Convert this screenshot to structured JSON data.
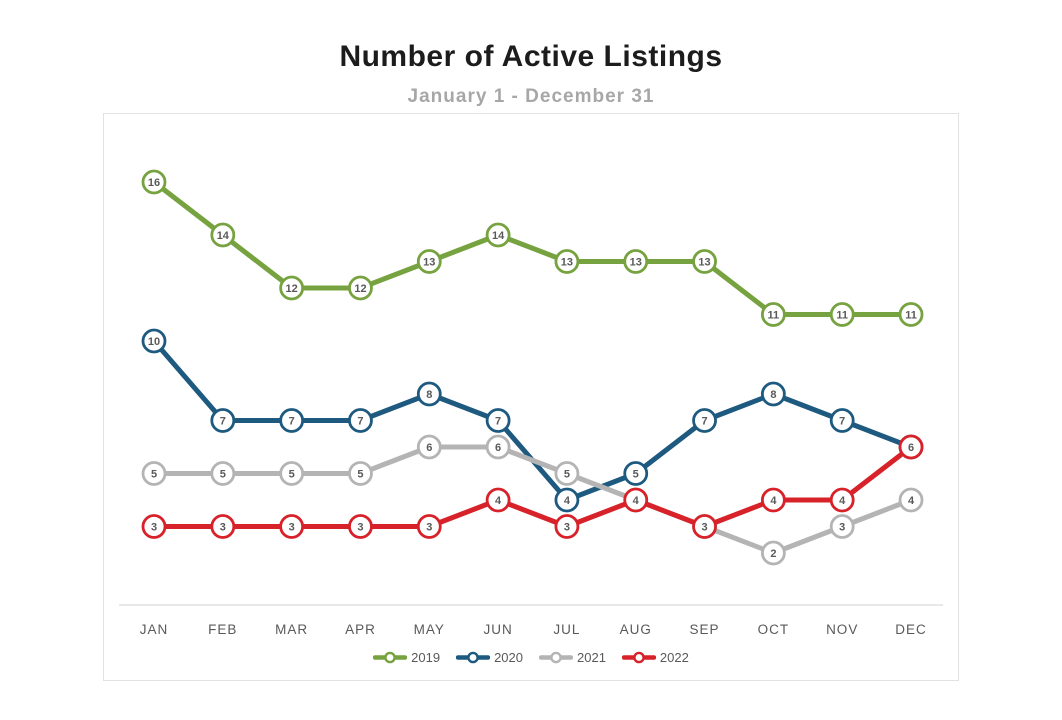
{
  "page": {
    "title": "Number of Active Listings",
    "subtitle": "January 1 - December 31"
  },
  "chart_data": {
    "type": "line",
    "title": "Number of Active Listings",
    "subtitle": "January 1 - December 31",
    "categories": [
      "JAN",
      "FEB",
      "MAR",
      "APR",
      "MAY",
      "JUN",
      "JUL",
      "AUG",
      "SEP",
      "OCT",
      "NOV",
      "DEC"
    ],
    "series": [
      {
        "name": "2019",
        "color": "#76A23F",
        "values": [
          16,
          14,
          12,
          12,
          13,
          14,
          13,
          13,
          13,
          11,
          11,
          11
        ]
      },
      {
        "name": "2020",
        "color": "#1E5A80",
        "values": [
          10,
          7,
          7,
          7,
          8,
          7,
          4,
          5,
          7,
          8,
          7,
          6
        ]
      },
      {
        "name": "2021",
        "color": "#B4B4B4",
        "values": [
          5,
          5,
          5,
          5,
          6,
          6,
          5,
          4,
          3,
          2,
          3,
          4
        ]
      },
      {
        "name": "2022",
        "color": "#D7222A",
        "values": [
          3,
          3,
          3,
          3,
          3,
          4,
          3,
          4,
          3,
          4,
          4,
          6
        ]
      }
    ],
    "xlabel": "",
    "ylabel": "",
    "ylim": [
      0,
      18
    ],
    "grid": false,
    "y_axis_visible": false,
    "legend_position": "bottom",
    "marker_style": "circle-with-value",
    "marker_label_color": "#595959",
    "axis_label_color": "#595959",
    "axis_line_color": "#dadada"
  }
}
